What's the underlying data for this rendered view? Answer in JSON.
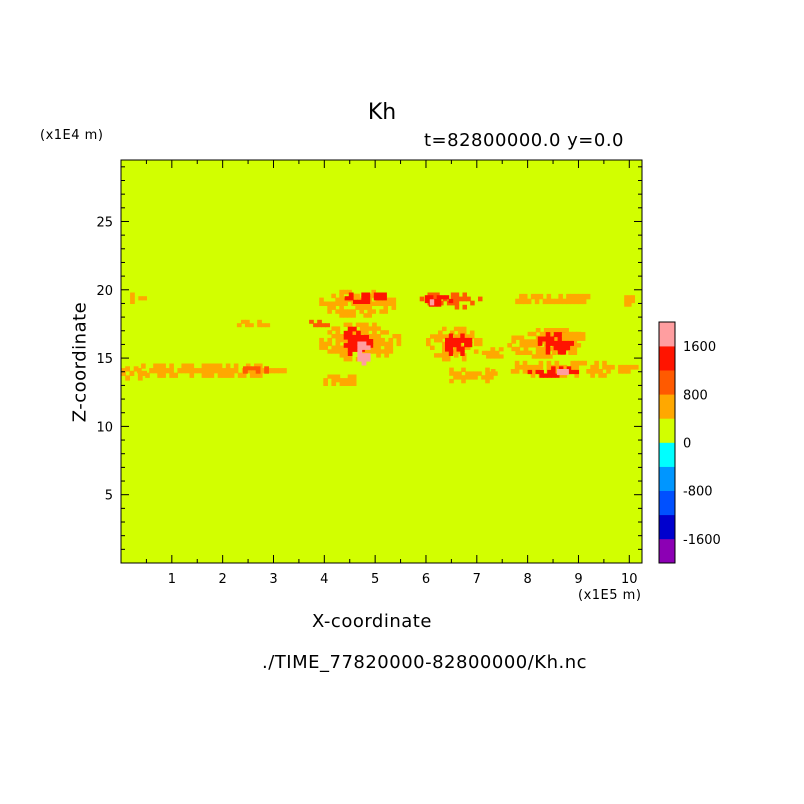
{
  "chart_data": {
    "type": "heatmap",
    "title": "Kh",
    "subtitle": "t=82800000.0 y=0.0",
    "xlabel": "X-coordinate",
    "ylabel": "Z-coordinate",
    "x_unit": "(x1E5 m)",
    "y_unit": "(x1E4 m)",
    "source_file": "./TIME_77820000-82800000/Kh.nc",
    "xlim": [
      0,
      10.25
    ],
    "ylim": [
      0,
      29.5
    ],
    "x_ticks": [
      1,
      2,
      3,
      4,
      5,
      6,
      7,
      8,
      9,
      10
    ],
    "x_tick_labels": [
      "1",
      "2",
      "3",
      "4",
      "5",
      "6",
      "7",
      "8",
      "9",
      "10"
    ],
    "y_ticks": [
      5,
      10,
      15,
      20,
      25
    ],
    "y_tick_labels": [
      "5",
      "10",
      "15",
      "20",
      "25"
    ],
    "background_value": 0,
    "colorbar": {
      "levels": [
        -2000,
        -1600,
        -1200,
        -800,
        -400,
        0,
        400,
        800,
        1200,
        1600,
        2000
      ],
      "colors": [
        "#8c00b4",
        "#0000cd",
        "#0050ff",
        "#0096ff",
        "#00ffff",
        "#d2ff00",
        "#ffa800",
        "#ff5a00",
        "#ff1400",
        "#ff9ea0"
      ],
      "tick_values": [
        1600,
        800,
        0,
        -800,
        -1600
      ],
      "tick_labels": [
        "1600",
        "800",
        "0",
        "-800",
        "-1600"
      ]
    },
    "features": [
      {
        "x0": 0.0,
        "x1": 3.25,
        "z0": 13.6,
        "z1": 14.6,
        "value": 600
      },
      {
        "x0": 0.0,
        "x1": 0.5,
        "z0": 13.4,
        "z1": 14.4,
        "value": 600
      },
      {
        "x0": 2.4,
        "x1": 2.9,
        "z0": 13.9,
        "z1": 14.4,
        "value": 1000
      },
      {
        "x0": 0.1,
        "x1": 0.5,
        "z0": 19.0,
        "z1": 19.8,
        "value": 600
      },
      {
        "x0": 2.2,
        "x1": 3.0,
        "z0": 17.3,
        "z1": 17.8,
        "value": 600
      },
      {
        "x0": 3.7,
        "x1": 4.1,
        "z0": 17.3,
        "z1": 17.8,
        "value": 900
      },
      {
        "x0": 3.9,
        "x1": 5.5,
        "z0": 14.8,
        "z1": 17.6,
        "value": 600
      },
      {
        "x0": 4.3,
        "x1": 4.95,
        "z0": 15.2,
        "z1": 17.3,
        "value": 1400
      },
      {
        "x0": 4.65,
        "x1": 4.9,
        "z0": 14.5,
        "z1": 16.5,
        "value": 1900
      },
      {
        "x0": 3.9,
        "x1": 4.7,
        "z0": 13.0,
        "z1": 13.8,
        "value": 600
      },
      {
        "x0": 3.9,
        "x1": 5.4,
        "z0": 18.0,
        "z1": 20.0,
        "value": 700
      },
      {
        "x0": 4.4,
        "x1": 5.3,
        "z0": 19.0,
        "z1": 19.8,
        "value": 1400
      },
      {
        "x0": 5.8,
        "x1": 7.1,
        "z0": 18.6,
        "z1": 19.8,
        "value": 800
      },
      {
        "x0": 5.9,
        "x1": 6.6,
        "z0": 18.8,
        "z1": 19.6,
        "value": 1400
      },
      {
        "x0": 6.0,
        "x1": 6.15,
        "z0": 18.9,
        "z1": 19.3,
        "value": 1900
      },
      {
        "x0": 7.6,
        "x1": 9.3,
        "z0": 19.0,
        "z1": 19.7,
        "value": 700
      },
      {
        "x0": 9.9,
        "x1": 10.1,
        "z0": 18.8,
        "z1": 19.6,
        "value": 700
      },
      {
        "x0": 6.0,
        "x1": 7.1,
        "z0": 14.8,
        "z1": 17.3,
        "value": 700
      },
      {
        "x0": 6.3,
        "x1": 6.9,
        "z0": 15.2,
        "z1": 16.8,
        "value": 1300
      },
      {
        "x0": 7.1,
        "x1": 7.6,
        "z0": 15.0,
        "z1": 15.8,
        "value": 700
      },
      {
        "x0": 7.6,
        "x1": 9.2,
        "z0": 15.0,
        "z1": 17.2,
        "value": 700
      },
      {
        "x0": 8.2,
        "x1": 8.9,
        "z0": 15.3,
        "z1": 16.9,
        "value": 1300
      },
      {
        "x0": 8.6,
        "x1": 9.2,
        "z0": 16.3,
        "z1": 16.9,
        "value": 700
      },
      {
        "x0": 6.3,
        "x1": 7.4,
        "z0": 13.2,
        "z1": 14.3,
        "value": 600
      },
      {
        "x0": 7.2,
        "x1": 10.25,
        "z0": 13.6,
        "z1": 14.8,
        "value": 600
      },
      {
        "x0": 8.0,
        "x1": 9.0,
        "z0": 13.6,
        "z1": 14.4,
        "value": 1200
      },
      {
        "x0": 8.5,
        "x1": 8.8,
        "z0": 13.8,
        "z1": 14.2,
        "value": 1900
      }
    ]
  }
}
